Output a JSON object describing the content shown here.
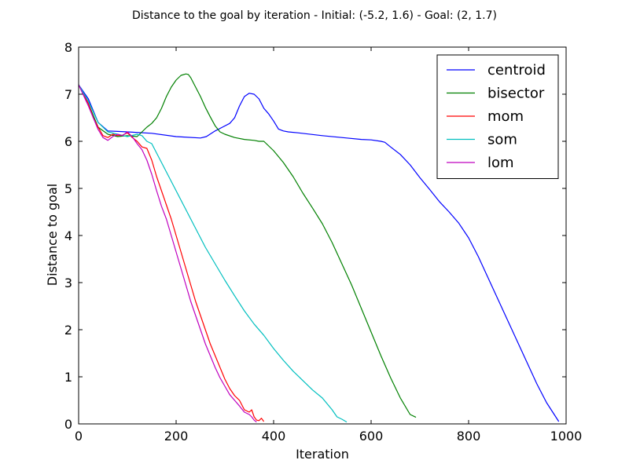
{
  "chart_data": {
    "type": "line",
    "title": "Distance to the goal by iteration - Initial: (-5.2, 1.6) - Goal: (2, 1.7)",
    "xlabel": "Iteration",
    "ylabel": "Distance to goal",
    "xlim": [
      0,
      1000
    ],
    "ylim": [
      0,
      8
    ],
    "xticks": [
      0,
      200,
      400,
      600,
      800,
      1000
    ],
    "yticks": [
      0,
      1,
      2,
      3,
      4,
      5,
      6,
      7,
      8
    ],
    "grid": false,
    "legend_position": "top-right",
    "series": [
      {
        "name": "centroid",
        "color": "#0000ff",
        "x": [
          0,
          20,
          40,
          60,
          80,
          100,
          150,
          200,
          250,
          262,
          280,
          295,
          310,
          320,
          330,
          340,
          350,
          360,
          370,
          380,
          390,
          400,
          410,
          420,
          430,
          450,
          500,
          550,
          580,
          600,
          620,
          628,
          640,
          660,
          680,
          700,
          720,
          740,
          760,
          780,
          800,
          820,
          840,
          860,
          880,
          900,
          920,
          940,
          960,
          985
        ],
        "y": [
          7.2,
          6.9,
          6.4,
          6.22,
          6.21,
          6.2,
          6.17,
          6.1,
          6.07,
          6.1,
          6.22,
          6.3,
          6.38,
          6.5,
          6.75,
          6.95,
          7.02,
          7.0,
          6.9,
          6.7,
          6.58,
          6.43,
          6.26,
          6.22,
          6.2,
          6.18,
          6.12,
          6.07,
          6.04,
          6.03,
          6.0,
          5.98,
          5.88,
          5.72,
          5.5,
          5.23,
          4.98,
          4.72,
          4.5,
          4.26,
          3.95,
          3.55,
          3.1,
          2.65,
          2.2,
          1.75,
          1.3,
          0.85,
          0.45,
          0.05
        ]
      },
      {
        "name": "bisector",
        "color": "#008000",
        "x": [
          0,
          20,
          40,
          60,
          80,
          100,
          120,
          130,
          140,
          150,
          160,
          170,
          180,
          190,
          200,
          210,
          220,
          225,
          230,
          240,
          250,
          260,
          270,
          280,
          290,
          300,
          320,
          340,
          360,
          370,
          380,
          390,
          400,
          420,
          440,
          460,
          480,
          500,
          520,
          540,
          560,
          580,
          600,
          620,
          640,
          660,
          680,
          692
        ],
        "y": [
          7.2,
          6.8,
          6.3,
          6.15,
          6.1,
          6.12,
          6.1,
          6.2,
          6.3,
          6.38,
          6.5,
          6.7,
          6.95,
          7.15,
          7.3,
          7.4,
          7.43,
          7.42,
          7.35,
          7.15,
          6.95,
          6.72,
          6.52,
          6.33,
          6.2,
          6.15,
          6.08,
          6.04,
          6.02,
          6.0,
          6.0,
          5.9,
          5.8,
          5.55,
          5.25,
          4.9,
          4.58,
          4.25,
          3.85,
          3.4,
          2.95,
          2.45,
          1.95,
          1.45,
          0.98,
          0.55,
          0.2,
          0.14
        ]
      },
      {
        "name": "mom",
        "color": "#ff0000",
        "x": [
          0,
          20,
          30,
          40,
          50,
          60,
          70,
          80,
          90,
          100,
          110,
          120,
          130,
          140,
          150,
          160,
          170,
          180,
          190,
          200,
          210,
          220,
          230,
          240,
          250,
          260,
          270,
          280,
          290,
          300,
          310,
          320,
          330,
          340,
          350,
          355,
          360,
          365,
          370,
          375,
          380
        ],
        "y": [
          7.2,
          6.8,
          6.5,
          6.3,
          6.12,
          6.08,
          6.15,
          6.12,
          6.13,
          6.18,
          6.08,
          6.0,
          5.88,
          5.85,
          5.6,
          5.25,
          4.95,
          4.65,
          4.35,
          4.0,
          3.65,
          3.3,
          2.95,
          2.6,
          2.3,
          2.0,
          1.7,
          1.45,
          1.2,
          0.95,
          0.75,
          0.6,
          0.5,
          0.3,
          0.25,
          0.3,
          0.15,
          0.08,
          0.07,
          0.12,
          0.05
        ]
      },
      {
        "name": "som",
        "color": "#00bfbf",
        "x": [
          0,
          20,
          40,
          60,
          80,
          100,
          120,
          130,
          140,
          150,
          160,
          170,
          180,
          200,
          220,
          240,
          260,
          280,
          300,
          320,
          340,
          360,
          380,
          400,
          420,
          440,
          460,
          480,
          500,
          520,
          530,
          540,
          550
        ],
        "y": [
          7.2,
          6.85,
          6.4,
          6.2,
          6.15,
          6.1,
          6.15,
          6.12,
          6.0,
          5.95,
          5.75,
          5.55,
          5.35,
          4.95,
          4.55,
          4.15,
          3.75,
          3.4,
          3.05,
          2.72,
          2.4,
          2.12,
          1.88,
          1.6,
          1.35,
          1.12,
          0.92,
          0.72,
          0.55,
          0.3,
          0.15,
          0.1,
          0.04
        ]
      },
      {
        "name": "lom",
        "color": "#bf00bf",
        "x": [
          0,
          20,
          40,
          50,
          60,
          70,
          80,
          90,
          100,
          110,
          120,
          130,
          140,
          150,
          160,
          170,
          180,
          190,
          200,
          210,
          220,
          230,
          240,
          250,
          260,
          270,
          280,
          290,
          300,
          310,
          320,
          330,
          340,
          350,
          355,
          360,
          365
        ],
        "y": [
          7.2,
          6.75,
          6.25,
          6.08,
          6.02,
          6.1,
          6.15,
          6.12,
          6.2,
          6.1,
          5.95,
          5.82,
          5.6,
          5.3,
          4.95,
          4.62,
          4.35,
          4.0,
          3.65,
          3.3,
          2.95,
          2.6,
          2.3,
          2.0,
          1.7,
          1.45,
          1.2,
          0.98,
          0.8,
          0.62,
          0.5,
          0.38,
          0.25,
          0.2,
          0.15,
          0.08,
          0.04
        ]
      }
    ]
  }
}
